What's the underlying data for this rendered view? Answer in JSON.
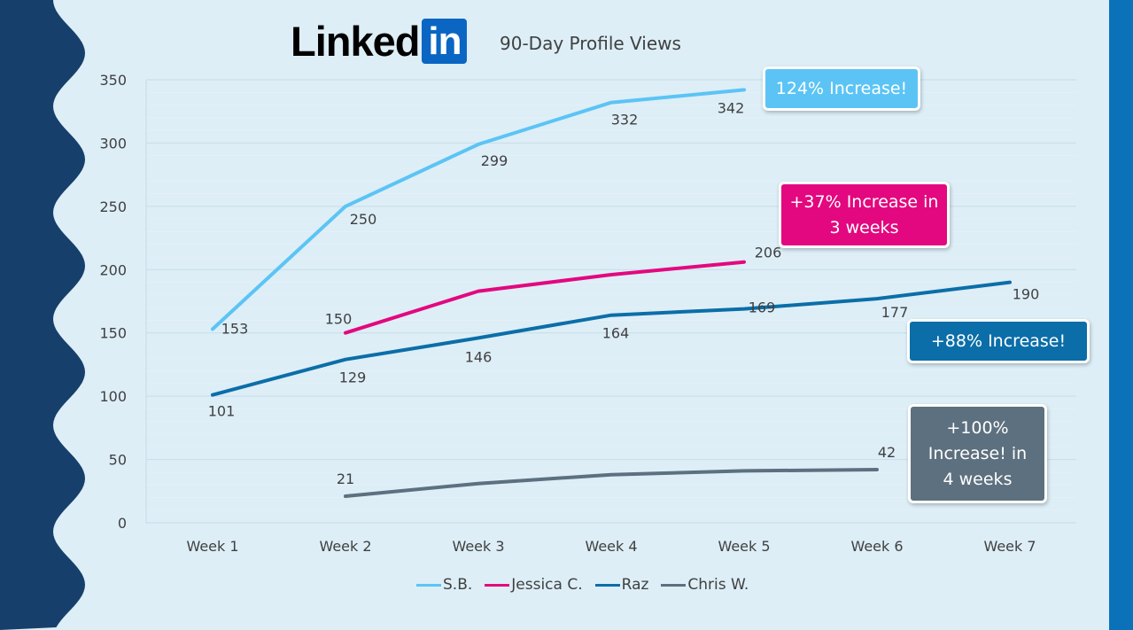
{
  "logo": {
    "text": "Linked",
    "box_text": "in"
  },
  "colors": {
    "background": "#ddeef7",
    "frame_left": "#173f6b",
    "frame_right": "#0b72b9"
  },
  "chart_data": {
    "type": "line",
    "title": "90-Day Profile Views",
    "categories": [
      "Week 1",
      "Week 2",
      "Week 3",
      "Week 4",
      "Week 5",
      "Week 6",
      "Week 7"
    ],
    "ylim": [
      0,
      350
    ],
    "yticks": [
      0,
      50,
      100,
      150,
      200,
      250,
      300,
      350
    ],
    "grid": true,
    "legend_position": "bottom",
    "series": [
      {
        "name": "S.B.",
        "color": "#5bc4f5",
        "values": [
          153,
          250,
          299,
          332,
          342,
          null,
          null
        ],
        "labels": [
          "153",
          "250",
          "299",
          "332",
          "342",
          "",
          ""
        ]
      },
      {
        "name": "Jessica C.",
        "color": "#e3087f",
        "values": [
          null,
          150,
          183,
          196,
          206,
          null,
          null
        ],
        "labels": [
          "",
          "150",
          "",
          "",
          "206",
          "",
          ""
        ]
      },
      {
        "name": "Raz",
        "color": "#0b6ea8",
        "values": [
          101,
          129,
          146,
          164,
          169,
          177,
          190
        ],
        "labels": [
          "101",
          "129",
          "146",
          "164",
          "169",
          "177",
          "190"
        ]
      },
      {
        "name": "Chris W.",
        "color": "#5d707f",
        "values": [
          null,
          21,
          31,
          38,
          41,
          42,
          null
        ],
        "labels": [
          "",
          "21",
          "",
          "",
          "",
          "42",
          ""
        ]
      }
    ],
    "annotations": [
      {
        "text": "124% Increase!",
        "color": "#5bc4f5"
      },
      {
        "text": "+37% Increase in\n3 weeks",
        "color": "#e3087f"
      },
      {
        "text": "+88% Increase!",
        "color": "#0b6ea8"
      },
      {
        "text": "+100%\nIncrease! in\n4 weeks",
        "color": "#5d707f"
      }
    ]
  }
}
